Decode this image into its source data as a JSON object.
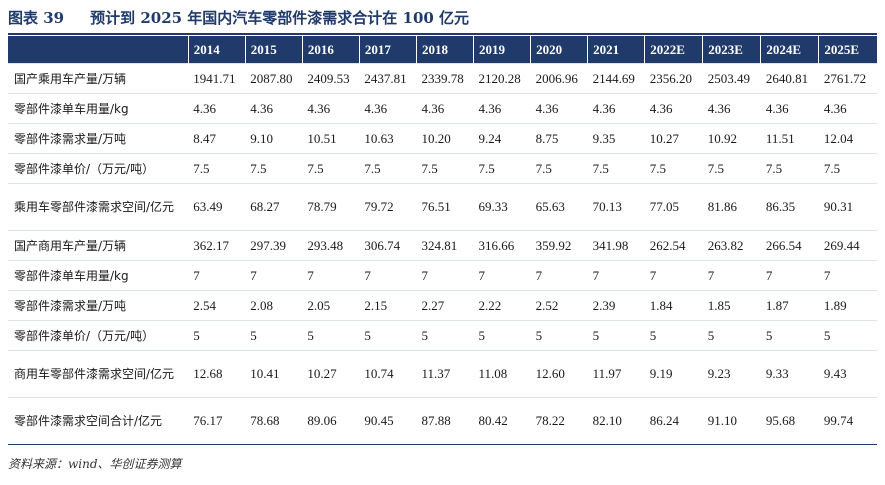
{
  "figure": {
    "label": "图表 39",
    "title": "预计到 2025 年国内汽车零部件漆需求合计在 100 亿元"
  },
  "table": {
    "columns": [
      "2014",
      "2015",
      "2016",
      "2017",
      "2018",
      "2019",
      "2020",
      "2021",
      "2022E",
      "2023E",
      "2024E",
      "2025E"
    ],
    "rows": [
      {
        "label": "国产乘用车产量/万辆",
        "values": [
          "1941.71",
          "2087.80",
          "2409.53",
          "2437.81",
          "2339.78",
          "2120.28",
          "2006.96",
          "2144.69",
          "2356.20",
          "2503.49",
          "2640.81",
          "2761.72"
        ]
      },
      {
        "label": "零部件漆单车用量/kg",
        "values": [
          "4.36",
          "4.36",
          "4.36",
          "4.36",
          "4.36",
          "4.36",
          "4.36",
          "4.36",
          "4.36",
          "4.36",
          "4.36",
          "4.36"
        ]
      },
      {
        "label": "零部件漆需求量/万吨",
        "values": [
          "8.47",
          "9.10",
          "10.51",
          "10.63",
          "10.20",
          "9.24",
          "8.75",
          "9.35",
          "10.27",
          "10.92",
          "11.51",
          "12.04"
        ]
      },
      {
        "label": "零部件漆单价/（万元/吨）",
        "values": [
          "7.5",
          "7.5",
          "7.5",
          "7.5",
          "7.5",
          "7.5",
          "7.5",
          "7.5",
          "7.5",
          "7.5",
          "7.5",
          "7.5"
        ]
      },
      {
        "label": "乘用车零部件漆需求空间/亿元",
        "values": [
          "63.49",
          "68.27",
          "78.79",
          "79.72",
          "76.51",
          "69.33",
          "65.63",
          "70.13",
          "77.05",
          "81.86",
          "86.35",
          "90.31"
        ]
      },
      {
        "label": "国产商用车产量/万辆",
        "values": [
          "362.17",
          "297.39",
          "293.48",
          "306.74",
          "324.81",
          "316.66",
          "359.92",
          "341.98",
          "262.54",
          "263.82",
          "266.54",
          "269.44"
        ]
      },
      {
        "label": "零部件漆单车用量/kg",
        "values": [
          "7",
          "7",
          "7",
          "7",
          "7",
          "7",
          "7",
          "7",
          "7",
          "7",
          "7",
          "7"
        ]
      },
      {
        "label": "零部件漆需求量/万吨",
        "values": [
          "2.54",
          "2.08",
          "2.05",
          "2.15",
          "2.27",
          "2.22",
          "2.52",
          "2.39",
          "1.84",
          "1.85",
          "1.87",
          "1.89"
        ]
      },
      {
        "label": "零部件漆单价/（万元/吨）",
        "values": [
          "5",
          "5",
          "5",
          "5",
          "5",
          "5",
          "5",
          "5",
          "5",
          "5",
          "5",
          "5"
        ]
      },
      {
        "label": "商用车零部件漆需求空间/亿元",
        "values": [
          "12.68",
          "10.41",
          "10.27",
          "10.74",
          "11.37",
          "11.08",
          "12.60",
          "11.97",
          "9.19",
          "9.23",
          "9.33",
          "9.43"
        ]
      },
      {
        "label": "零部件漆需求空间合计/亿元",
        "values": [
          "76.17",
          "78.68",
          "89.06",
          "90.45",
          "87.88",
          "80.42",
          "78.22",
          "82.10",
          "86.24",
          "91.10",
          "95.68",
          "99.74"
        ]
      }
    ]
  },
  "source": "资料来源：wind、华创证券测算"
}
